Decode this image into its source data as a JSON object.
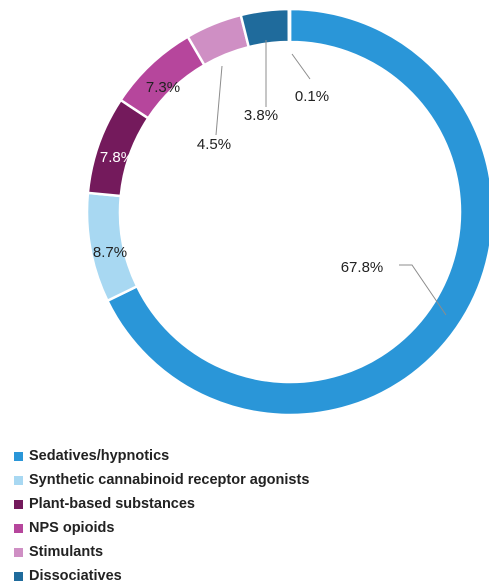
{
  "chart_data": {
    "type": "pie",
    "style": "donut",
    "title": "",
    "legend_position": "bottom",
    "slices": [
      {
        "label": "Sedatives/hypnotics",
        "value": 67.8,
        "value_label": "67.8%",
        "color": "#2a96d8"
      },
      {
        "label": "Synthetic cannabinoid receptor agonists",
        "value": 8.7,
        "value_label": "8.7%",
        "color": "#a8d8f2"
      },
      {
        "label": "Plant-based substances",
        "value": 7.8,
        "value_label": "7.8%",
        "color": "#741a5c"
      },
      {
        "label": "NPS opioids",
        "value": 7.3,
        "value_label": "7.3%",
        "color": "#b6469c"
      },
      {
        "label": "Stimulants",
        "value": 4.5,
        "value_label": "4.5%",
        "color": "#cf8fc4"
      },
      {
        "label": "Dissociatives",
        "value": 3.8,
        "value_label": "3.8%",
        "color": "#1f6b9c"
      },
      {
        "label": "",
        "value": 0.1,
        "value_label": "0.1%",
        "color": "#111111"
      }
    ]
  }
}
